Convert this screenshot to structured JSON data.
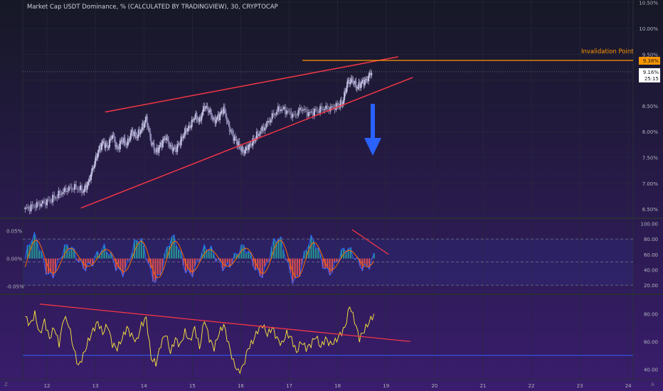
{
  "chart_title": "Market Cap USDT Dominance, % (CALCULATED BY TRADINGVIEW), 30, CRYPTOCAP",
  "annotation": "Invalidation Point",
  "corner_left": "Z",
  "corner_right": "A",
  "colors": {
    "background_top": "#161826",
    "background_bottom": "#3a1d6e",
    "candle": "#c8c6e6",
    "trendline": "#f23645",
    "invalidation": "#ff9800",
    "arrow": "#2962ff",
    "macd_line": "#2962ff",
    "signal_line": "#ff6d00",
    "hist_up": "#26a69a",
    "hist_down": "#ef5350",
    "rsi_line": "#ffeb3b",
    "baseline": "#2962ff"
  },
  "chart_data": [
    {
      "type": "candlestick",
      "ylim": [
        6.35,
        10.55
      ],
      "y_ticks": [
        "10.50%",
        "10.00%",
        "9.50%",
        "9.00%",
        "8.50%",
        "8.00%",
        "7.50%",
        "7.00%",
        "6.50%"
      ],
      "y_tick_values": [
        10.5,
        10.0,
        9.5,
        9.0,
        8.5,
        8.0,
        7.5,
        7.0,
        6.5
      ],
      "last_value_label": "9.16%",
      "last_value": 9.16,
      "countdown": "25:15",
      "invalidation_label": "9.38%",
      "invalidation_value": 9.38,
      "x_ticks": [
        "12",
        "13",
        "14",
        "15",
        "16",
        "17",
        "18",
        "19",
        "20",
        "21",
        "22",
        "23",
        "24"
      ],
      "x_tick_values": [
        12,
        13,
        14,
        15,
        16,
        17,
        18,
        19,
        20,
        21,
        22,
        23,
        24
      ],
      "xlim": [
        11.5,
        24.1
      ],
      "close_series": [
        [
          11.55,
          6.5
        ],
        [
          11.7,
          6.55
        ],
        [
          11.85,
          6.6
        ],
        [
          12.0,
          6.65
        ],
        [
          12.15,
          6.72
        ],
        [
          12.3,
          6.82
        ],
        [
          12.45,
          6.9
        ],
        [
          12.6,
          6.92
        ],
        [
          12.75,
          6.85
        ],
        [
          12.85,
          7.0
        ],
        [
          12.95,
          7.3
        ],
        [
          13.05,
          7.6
        ],
        [
          13.15,
          7.8
        ],
        [
          13.25,
          7.7
        ],
        [
          13.35,
          7.95
        ],
        [
          13.45,
          7.65
        ],
        [
          13.55,
          7.85
        ],
        [
          13.65,
          7.75
        ],
        [
          13.75,
          8.0
        ],
        [
          13.85,
          7.9
        ],
        [
          13.95,
          8.05
        ],
        [
          14.05,
          8.25
        ],
        [
          14.15,
          7.8
        ],
        [
          14.25,
          7.6
        ],
        [
          14.35,
          7.75
        ],
        [
          14.45,
          7.9
        ],
        [
          14.55,
          7.7
        ],
        [
          14.65,
          7.65
        ],
        [
          14.75,
          7.8
        ],
        [
          14.85,
          8.0
        ],
        [
          14.95,
          8.1
        ],
        [
          15.05,
          8.3
        ],
        [
          15.15,
          8.2
        ],
        [
          15.25,
          8.5
        ],
        [
          15.35,
          8.4
        ],
        [
          15.45,
          8.2
        ],
        [
          15.55,
          8.3
        ],
        [
          15.65,
          8.45
        ],
        [
          15.75,
          8.1
        ],
        [
          15.85,
          7.9
        ],
        [
          15.95,
          7.75
        ],
        [
          16.05,
          7.6
        ],
        [
          16.15,
          7.7
        ],
        [
          16.25,
          7.8
        ],
        [
          16.35,
          7.95
        ],
        [
          16.5,
          8.1
        ],
        [
          16.65,
          8.3
        ],
        [
          16.8,
          8.45
        ],
        [
          16.95,
          8.4
        ],
        [
          17.1,
          8.3
        ],
        [
          17.25,
          8.45
        ],
        [
          17.4,
          8.35
        ],
        [
          17.55,
          8.4
        ],
        [
          17.7,
          8.45
        ],
        [
          17.85,
          8.45
        ],
        [
          18.0,
          8.5
        ],
        [
          18.1,
          8.55
        ],
        [
          18.2,
          8.95
        ],
        [
          18.3,
          9.0
        ],
        [
          18.4,
          8.85
        ],
        [
          18.5,
          8.95
        ],
        [
          18.6,
          9.0
        ],
        [
          18.7,
          9.16
        ]
      ],
      "wedge_upper": [
        [
          13.2,
          8.38
        ],
        [
          19.25,
          9.45
        ]
      ],
      "wedge_lower": [
        [
          12.7,
          6.52
        ],
        [
          19.55,
          9.05
        ]
      ]
    },
    {
      "type": "oscillator",
      "left_ticks": [
        "0.05%",
        "0.00%",
        "-0.05%"
      ],
      "left_tick_values": [
        0.05,
        0.0,
        -0.05
      ],
      "left_ylim": [
        -0.062,
        0.07
      ],
      "right_ticks": [
        "100.00",
        "80.00",
        "60.00",
        "40.00",
        "20.00"
      ],
      "right_tick_values": [
        100,
        80,
        60,
        40,
        20
      ],
      "right_ylim": [
        10,
        105
      ],
      "band_upper": 80,
      "band_mid": 50,
      "band_lower": 20,
      "trendline": [
        [
          18.3,
          92
        ],
        [
          19.05,
          60
        ]
      ]
    },
    {
      "type": "line",
      "right_ticks": [
        "80.00",
        "60.00",
        "40.00"
      ],
      "right_tick_values": [
        80,
        60,
        40
      ],
      "ylim": [
        33,
        93
      ],
      "baseline": 50,
      "trendline": [
        [
          11.85,
          87
        ],
        [
          19.5,
          60
        ]
      ],
      "series": [
        [
          11.55,
          78
        ],
        [
          11.65,
          72
        ],
        [
          11.75,
          80
        ],
        [
          11.85,
          65
        ],
        [
          11.95,
          75
        ],
        [
          12.05,
          62
        ],
        [
          12.15,
          70
        ],
        [
          12.25,
          58
        ],
        [
          12.35,
          78
        ],
        [
          12.45,
          72
        ],
        [
          12.55,
          55
        ],
        [
          12.65,
          42
        ],
        [
          12.75,
          50
        ],
        [
          12.85,
          60
        ],
        [
          12.95,
          68
        ],
        [
          13.05,
          74
        ],
        [
          13.15,
          66
        ],
        [
          13.25,
          72
        ],
        [
          13.35,
          58
        ],
        [
          13.45,
          55
        ],
        [
          13.55,
          62
        ],
        [
          13.65,
          70
        ],
        [
          13.75,
          64
        ],
        [
          13.85,
          60
        ],
        [
          13.95,
          72
        ],
        [
          14.05,
          77
        ],
        [
          14.15,
          48
        ],
        [
          14.25,
          44
        ],
        [
          14.35,
          58
        ],
        [
          14.45,
          66
        ],
        [
          14.55,
          52
        ],
        [
          14.65,
          62
        ],
        [
          14.75,
          57
        ],
        [
          14.85,
          67
        ],
        [
          14.95,
          60
        ],
        [
          15.05,
          70
        ],
        [
          15.15,
          55
        ],
        [
          15.25,
          76
        ],
        [
          15.35,
          62
        ],
        [
          15.45,
          55
        ],
        [
          15.55,
          66
        ],
        [
          15.65,
          72
        ],
        [
          15.75,
          58
        ],
        [
          15.85,
          45
        ],
        [
          15.95,
          38
        ],
        [
          16.05,
          42
        ],
        [
          16.15,
          55
        ],
        [
          16.25,
          60
        ],
        [
          16.35,
          68
        ],
        [
          16.45,
          72
        ],
        [
          16.55,
          65
        ],
        [
          16.65,
          70
        ],
        [
          16.75,
          62
        ],
        [
          16.85,
          58
        ],
        [
          16.95,
          66
        ],
        [
          17.05,
          62
        ],
        [
          17.15,
          52
        ],
        [
          17.25,
          60
        ],
        [
          17.35,
          55
        ],
        [
          17.45,
          58
        ],
        [
          17.55,
          64
        ],
        [
          17.65,
          56
        ],
        [
          17.75,
          62
        ],
        [
          17.85,
          58
        ],
        [
          17.95,
          60
        ],
        [
          18.05,
          65
        ],
        [
          18.15,
          70
        ],
        [
          18.25,
          86
        ],
        [
          18.35,
          75
        ],
        [
          18.45,
          62
        ],
        [
          18.55,
          68
        ],
        [
          18.65,
          74
        ],
        [
          18.75,
          80
        ]
      ]
    }
  ]
}
